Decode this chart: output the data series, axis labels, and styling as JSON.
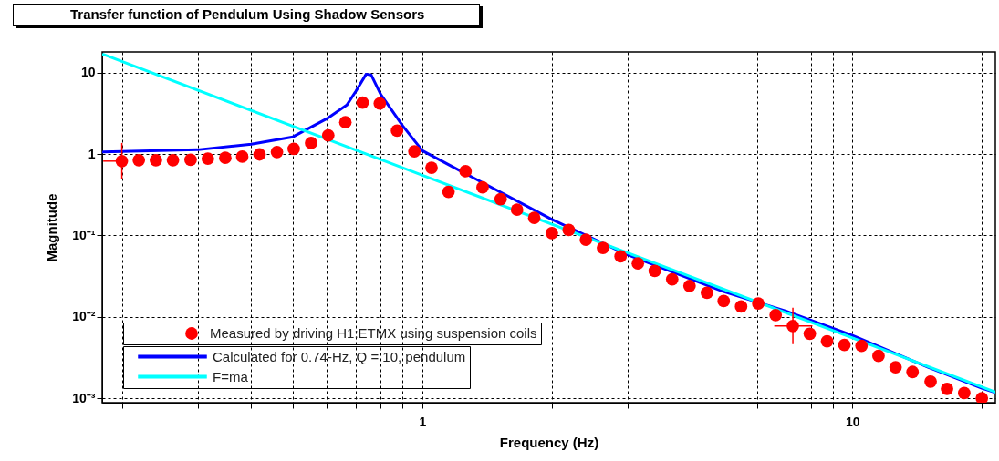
{
  "chart_data": {
    "type": "scatter",
    "title": "Transfer function of Pendulum Using Shadow Sensors",
    "xlabel": "Frequency (Hz)",
    "ylabel": "Magnitude",
    "log": "xy",
    "grid": true,
    "legend": "bottom left",
    "xlim": [
      0.18,
      21.5
    ],
    "ylim": [
      0.00088,
      18
    ],
    "xticks": [
      {
        "value": 0.2,
        "label": null
      },
      {
        "value": 0.3,
        "label": null
      },
      {
        "value": 0.4,
        "label": null
      },
      {
        "value": 0.5,
        "label": null
      },
      {
        "value": 0.6,
        "label": null
      },
      {
        "value": 0.7,
        "label": null
      },
      {
        "value": 0.8,
        "label": null
      },
      {
        "value": 0.9,
        "label": null
      },
      1,
      {
        "value": 2,
        "label": null
      },
      {
        "value": 3,
        "label": null
      },
      {
        "value": 4,
        "label": null
      },
      {
        "value": 5,
        "label": null
      },
      {
        "value": 6,
        "label": null
      },
      {
        "value": 7,
        "label": null
      },
      {
        "value": 8,
        "label": null
      },
      {
        "value": 9,
        "label": null
      },
      10,
      {
        "value": 20,
        "label": null
      }
    ],
    "yticks": [
      {
        "value": 0.001,
        "label": "10⁻³"
      },
      {
        "value": 0.01,
        "label": "10⁻²"
      },
      {
        "value": 0.1,
        "label": "10⁻¹"
      },
      1,
      10
    ],
    "series": [
      {
        "name": "Measured by driving H1:ETMX using suspension coils",
        "type": "scatter",
        "marker": "circle",
        "color": "#ff0000",
        "x": [
          0.2,
          0.219,
          0.24,
          0.263,
          0.289,
          0.317,
          0.348,
          0.381,
          0.418,
          0.459,
          0.502,
          0.551,
          0.604,
          0.662,
          0.726,
          0.796,
          0.873,
          0.958,
          1.05,
          1.15,
          1.26,
          1.38,
          1.52,
          1.66,
          1.82,
          2.0,
          2.19,
          2.4,
          2.63,
          2.89,
          3.17,
          3.47,
          3.81,
          4.18,
          4.59,
          5.02,
          5.51,
          6.04,
          6.63,
          7.27,
          7.96,
          8.73,
          9.58,
          10.5,
          11.5,
          12.6,
          13.8,
          15.2,
          16.6,
          18.2,
          20.0
        ],
        "values": [
          0.82,
          0.84,
          0.84,
          0.84,
          0.85,
          0.88,
          0.9,
          0.93,
          0.99,
          1.06,
          1.16,
          1.37,
          1.7,
          2.46,
          4.3,
          4.19,
          1.94,
          1.08,
          0.68,
          0.343,
          0.615,
          0.39,
          0.279,
          0.207,
          0.164,
          0.107,
          0.117,
          0.0886,
          0.0703,
          0.0553,
          0.0453,
          0.0366,
          0.0289,
          0.024,
          0.0197,
          0.0156,
          0.0134,
          0.0146,
          0.0105,
          0.0077,
          0.0062,
          0.005,
          0.0045,
          0.0044,
          0.0033,
          0.0024,
          0.0021,
          0.0016,
          0.0013,
          0.00116,
          0.001
        ],
        "errors": [
          [
            0.49,
            1.37
          ],
          null,
          null,
          null,
          null,
          null,
          null,
          null,
          null,
          null,
          null,
          null,
          null,
          null,
          null,
          null,
          null,
          null,
          null,
          null,
          null,
          null,
          null,
          null,
          null,
          null,
          null,
          null,
          null,
          null,
          null,
          null,
          null,
          null,
          null,
          null,
          null,
          null,
          null,
          [
            0.0046,
            0.0129
          ],
          null,
          null,
          null,
          null,
          null,
          null,
          null,
          null,
          null,
          null,
          null
        ],
        "xerrors": [
          [
            0.181,
            0.2
          ],
          null,
          null,
          null,
          null,
          null,
          null,
          null,
          null,
          null,
          null,
          null,
          null,
          null,
          null,
          null,
          null,
          null,
          null,
          null,
          null,
          null,
          null,
          null,
          null,
          null,
          null,
          null,
          null,
          null,
          null,
          null,
          null,
          null,
          null,
          null,
          null,
          null,
          null,
          [
            6.58,
            8.07
          ],
          null,
          null,
          null,
          null,
          null,
          null,
          null,
          null,
          null,
          null,
          null
        ]
      },
      {
        "name": "Calculated for 0.74-Hz, Q = 10, pendulum",
        "type": "line",
        "color": "#0000ff",
        "x": [
          0.181,
          0.3,
          0.4,
          0.5,
          0.6,
          0.667,
          0.7,
          0.74,
          0.76,
          0.8,
          0.9,
          1,
          2,
          3,
          5,
          7,
          10,
          15,
          20,
          21.5
        ],
        "values": [
          1.06,
          1.13,
          1.32,
          1.63,
          2.73,
          4.0,
          5.9,
          9.6,
          9.4,
          5.4,
          2.22,
          1.1,
          0.157,
          0.058,
          0.0205,
          0.0118,
          0.0059,
          0.0024,
          0.00133,
          0.00117
        ]
      },
      {
        "name": "F=ma",
        "type": "line",
        "color": "#00ffff",
        "x": [
          0.181,
          1,
          10,
          21.5
        ],
        "values": [
          16.8,
          0.55,
          0.0055,
          0.00119
        ]
      }
    ]
  }
}
